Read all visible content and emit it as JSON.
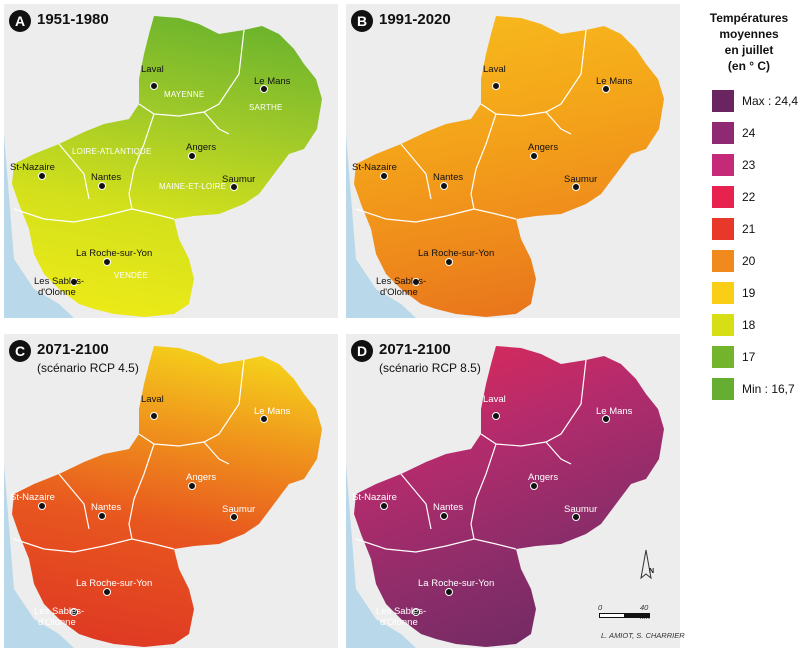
{
  "panels": [
    {
      "badge": "A",
      "title": "1951-1980",
      "subtitle": "",
      "gradient": [
        "#6fb52c",
        "#9cc82a",
        "#d3e01b",
        "#ecea18"
      ]
    },
    {
      "badge": "B",
      "title": "1991-2020",
      "subtitle": "",
      "gradient": [
        "#f7b81c",
        "#f4a51a",
        "#ef8c1b",
        "#e8741c"
      ]
    },
    {
      "badge": "C",
      "title": "2071-2100",
      "subtitle": "(scénario RCP 4.5)",
      "gradient": [
        "#f5d01b",
        "#ef901c",
        "#e8561f",
        "#df3a23"
      ]
    },
    {
      "badge": "D",
      "title": "2071-2100",
      "subtitle": "(scénario RCP 8.5)",
      "gradient": [
        "#d82a5a",
        "#b52b6c",
        "#8e2d6a",
        "#6f2a63"
      ]
    }
  ],
  "cities": {
    "laval": "Laval",
    "lemans": "Le Mans",
    "angers": "Angers",
    "stnazaire": "St-Nazaire",
    "nantes": "Nantes",
    "saumur": "Saumur",
    "larochesuryon": "La Roche-sur-Yon",
    "sables1": "Les Sables-",
    "sables2": "d'Olonne"
  },
  "departments": {
    "mayenne": "MAYENNE",
    "sarthe": "SARTHE",
    "loire_atlantique": "LOIRE-ATLANTIQUE",
    "maine_et_loire": "MAINE-ET-LOIRE",
    "vendee": "VENDÉE"
  },
  "legend": {
    "title_lines": [
      "Températures",
      "moyennes",
      "en juillet",
      "(en ° C)"
    ],
    "items": [
      {
        "label": "Max : 24,4",
        "color": "#6a2460"
      },
      {
        "label": "24",
        "color": "#8f2a72"
      },
      {
        "label": "23",
        "color": "#c42a77"
      },
      {
        "label": "22",
        "color": "#e8224f"
      },
      {
        "label": "21",
        "color": "#e8382a"
      },
      {
        "label": "20",
        "color": "#f08a1c"
      },
      {
        "label": "19",
        "color": "#f8cf16"
      },
      {
        "label": "18",
        "color": "#d6de16"
      },
      {
        "label": "17",
        "color": "#72b52c"
      },
      {
        "label": "Min : 16,7",
        "color": "#66ae32"
      }
    ]
  },
  "scale": {
    "start": "0",
    "end": "40 km"
  },
  "north": "N",
  "credit": "L. AMIOT, S. CHARRIER"
}
